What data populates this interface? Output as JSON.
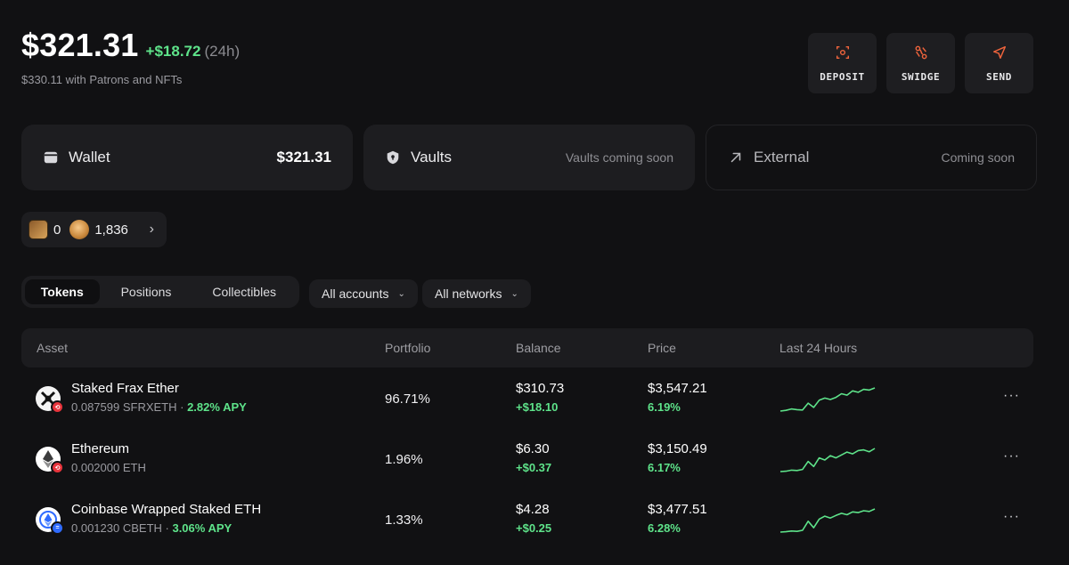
{
  "summary": {
    "total": "$321.31",
    "change": "+$18.72",
    "period": "(24h)",
    "subtitle": "$330.11 with Patrons and NFTs"
  },
  "actions": [
    {
      "label": "DEPOSIT",
      "icon": "deposit-icon"
    },
    {
      "label": "SWIDGE",
      "icon": "swidge-icon"
    },
    {
      "label": "SEND",
      "icon": "send-icon"
    }
  ],
  "accent_color": "#f0643c",
  "positive_color": "#5ee38a",
  "cards": {
    "wallet": {
      "title": "Wallet",
      "value": "$321.31"
    },
    "vaults": {
      "title": "Vaults",
      "note": "Vaults coming soon"
    },
    "external": {
      "title": "External",
      "note": "Coming soon"
    }
  },
  "points": {
    "patrons": "0",
    "tokens": "1,836"
  },
  "tabs": [
    "Tokens",
    "Positions",
    "Collectibles"
  ],
  "filters": {
    "accounts": "All accounts",
    "networks": "All networks"
  },
  "table": {
    "headers": [
      "Asset",
      "Portfolio",
      "Balance",
      "Price",
      "Last 24 Hours"
    ],
    "rows": [
      {
        "name": "Staked Frax Ether",
        "amount": "0.087599 SFRXETH",
        "apy": "2.82% APY",
        "portfolio": "96.71%",
        "balance": "$310.73",
        "balance_change": "+$18.10",
        "price": "$3,547.21",
        "price_change": "6.19%",
        "sparkline": [
          3,
          3.2,
          3.6,
          3.4,
          3.3,
          5.2,
          4.0,
          6.0,
          6.6,
          6.2,
          6.8,
          7.8,
          7.4,
          8.6,
          8.2,
          9.0,
          8.8,
          9.4
        ]
      },
      {
        "name": "Ethereum",
        "amount": "0.002000 ETH",
        "apy": "",
        "portfolio": "1.96%",
        "balance": "$6.30",
        "balance_change": "+$0.37",
        "price": "$3,150.49",
        "price_change": "6.17%",
        "sparkline": [
          3,
          3.1,
          3.4,
          3.3,
          3.6,
          5.8,
          4.4,
          6.8,
          6.2,
          7.4,
          6.8,
          7.6,
          8.4,
          7.9,
          8.8,
          9.0,
          8.5,
          9.4
        ]
      },
      {
        "name": "Coinbase Wrapped Staked ETH",
        "amount": "0.001230 CBETH",
        "apy": "3.06% APY",
        "portfolio": "1.33%",
        "balance": "$4.28",
        "balance_change": "+$0.25",
        "price": "$3,477.51",
        "price_change": "6.28%",
        "sparkline": [
          3,
          3.1,
          3.3,
          3.2,
          3.5,
          6.0,
          4.2,
          6.6,
          7.4,
          6.9,
          7.6,
          8.2,
          7.8,
          8.6,
          8.4,
          8.9,
          8.7,
          9.4
        ]
      }
    ]
  }
}
